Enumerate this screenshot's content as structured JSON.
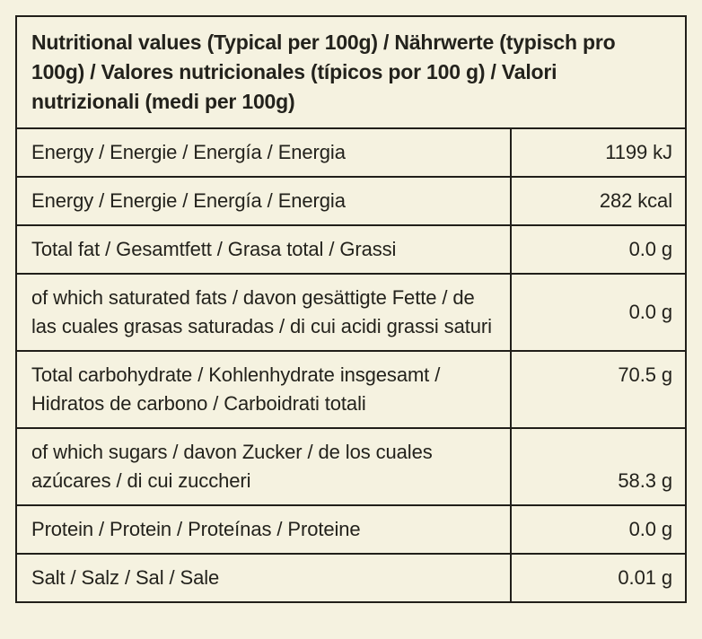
{
  "table": {
    "title": "Nutritional values (Typical per 100g) / Nährwerte (typisch pro 100g) / Valores nutricionales (típicos por 100 g) / Valori nutrizionali (medi per 100g)",
    "rows": [
      {
        "label": "Energy / Energie / Energía / Energia",
        "value": "1199 kJ"
      },
      {
        "label": "Energy / Energie / Energía / Energia",
        "value": "282 kcal"
      },
      {
        "label": "Total fat / Gesamtfett / Grasa total / Grassi",
        "value": "0.0 g"
      },
      {
        "label": "of which saturated fats /  davon gesättigte Fette / de las cuales grasas saturadas / di cui acidi grassi saturi",
        "value": "0.0 g"
      },
      {
        "label": "Total carbohydrate / Kohlenhydrate insgesamt / Hidratos de carbono / Carboidrati totali",
        "value": "70.5 g"
      },
      {
        "label": "of which sugars / davon Zucker / de los cuales azúcares / di cui zuccheri",
        "value": "58.3 g"
      },
      {
        "label": "Protein / Protein / Proteínas / Proteine",
        "value": "0.0 g"
      },
      {
        "label": "Salt / Salz / Sal / Sale",
        "value": "0.01 g"
      }
    ],
    "colors": {
      "background": "#f5f2e0",
      "border": "#211f1a",
      "text": "#23221c"
    }
  }
}
